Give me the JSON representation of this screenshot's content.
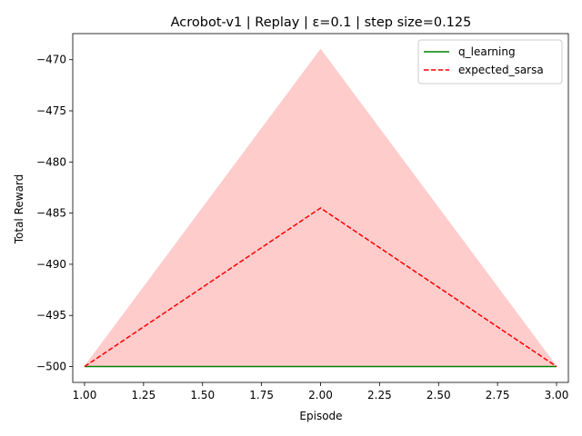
{
  "chart_data": {
    "type": "line",
    "title": "Acrobot-v1 | Replay | ε=0.1 | step size=0.125",
    "xlabel": "Episode",
    "ylabel": "Total Reward",
    "xlim": [
      0.95,
      3.05
    ],
    "ylim": [
      -501.55,
      -467.45
    ],
    "xticks": [
      1.0,
      1.25,
      1.5,
      1.75,
      2.0,
      2.25,
      2.5,
      2.75,
      3.0
    ],
    "xtick_labels": [
      "1.00",
      "1.25",
      "1.50",
      "1.75",
      "2.00",
      "2.25",
      "2.50",
      "2.75",
      "3.00"
    ],
    "yticks": [
      -500,
      -495,
      -490,
      -485,
      -480,
      -475,
      -470
    ],
    "ytick_labels": [
      "−500",
      "−495",
      "−490",
      "−485",
      "−480",
      "−475",
      "−470"
    ],
    "grid": false,
    "legend_position": "top-right",
    "x": [
      1,
      2,
      3
    ],
    "series": [
      {
        "name": "q_learning",
        "values": [
          -500,
          -500,
          -500
        ],
        "color": "#008000",
        "line_style": "solid",
        "band_lower": [
          -500,
          -500,
          -500
        ],
        "band_upper": [
          -500,
          -500,
          -500
        ]
      },
      {
        "name": "expected_sarsa",
        "values": [
          -500,
          -484.5,
          -500
        ],
        "color": "#ff0000",
        "line_style": "dashed",
        "band_color": "#ffcccc",
        "band_lower": [
          -500,
          -500,
          -500
        ],
        "band_upper": [
          -500,
          -469,
          -500
        ]
      }
    ]
  }
}
